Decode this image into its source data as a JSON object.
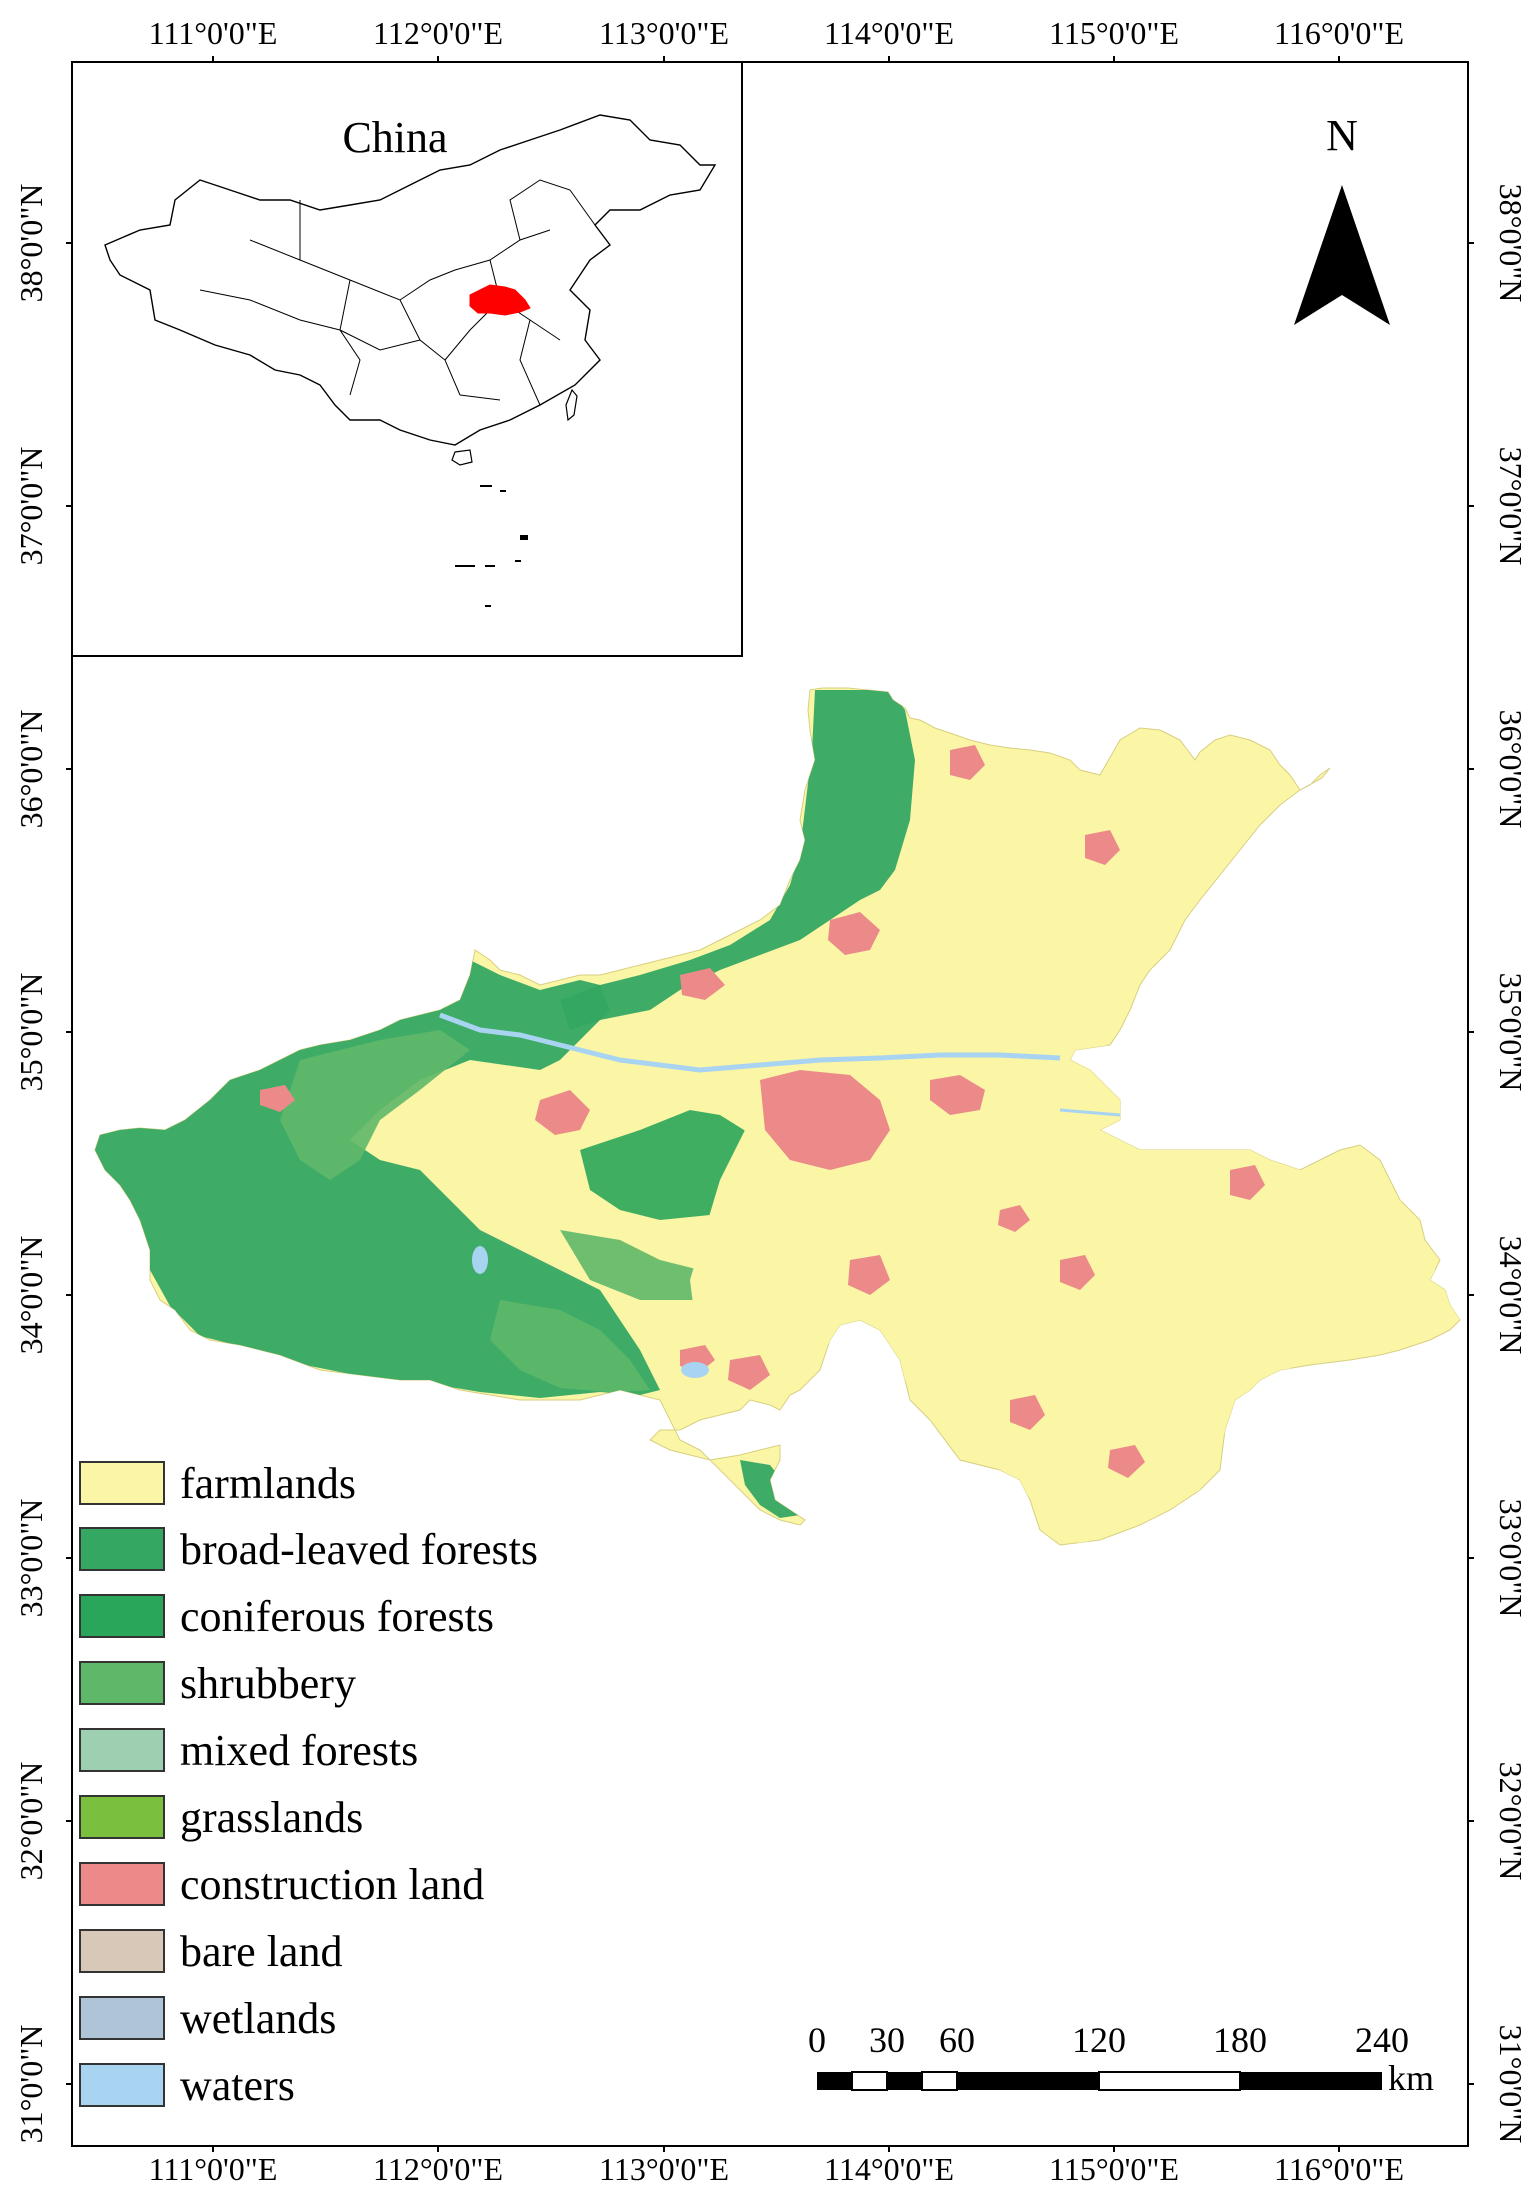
{
  "map": {
    "lon_ticks": [
      "111°0'0\"E",
      "112°0'0\"E",
      "113°0'0\"E",
      "114°0'0\"E",
      "115°0'0\"E",
      "116°0'0\"E"
    ],
    "lat_ticks": [
      "38°0'0\"N",
      "37°0'0\"N",
      "36°0'0\"N",
      "35°0'0\"N",
      "34°0'0\"N",
      "33°0'0\"N",
      "32°0'0\"N",
      "31°0'0\"N"
    ],
    "inset_title": "China",
    "north_label": "N"
  },
  "legend": {
    "items": [
      {
        "label": "farmlands",
        "color": "#fbf5a6"
      },
      {
        "label": "broad-leaved forests",
        "color": "#34a862"
      },
      {
        "label": "coniferous forests",
        "color": "#2aa65a"
      },
      {
        "label": "shrubbery",
        "color": "#5fb86a"
      },
      {
        "label": "mixed forests",
        "color": "#9dd0b0"
      },
      {
        "label": "grasslands",
        "color": "#7abf3e"
      },
      {
        "label": "construction land",
        "color": "#ec8a8a"
      },
      {
        "label": "bare land",
        "color": "#d8c8b8"
      },
      {
        "label": "wetlands",
        "color": "#b0c4d8"
      },
      {
        "label": "waters",
        "color": "#a8d4f2"
      }
    ]
  },
  "scale_bar": {
    "labels": [
      "0",
      "30",
      "60",
      "120",
      "180",
      "240"
    ],
    "unit": "km"
  }
}
